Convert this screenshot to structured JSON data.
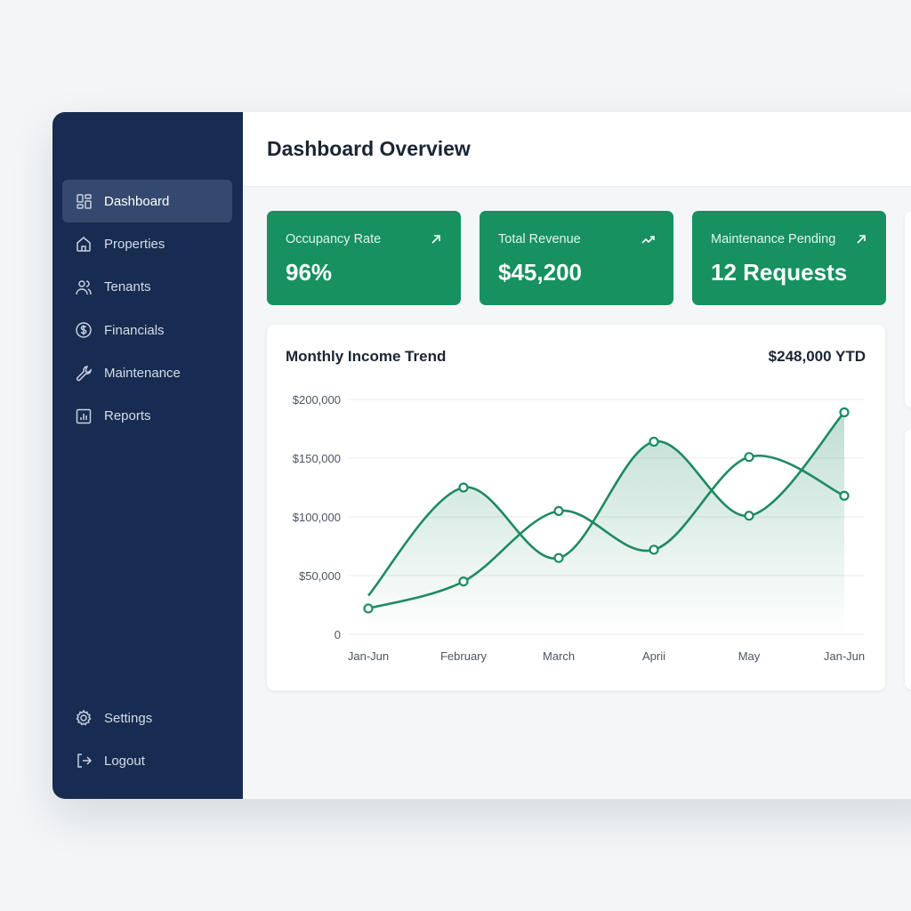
{
  "sidebar": {
    "items": [
      {
        "label": "Dashboard",
        "icon": "dashboard-grid-icon",
        "active": true
      },
      {
        "label": "Properties",
        "icon": "home-icon"
      },
      {
        "label": "Tenants",
        "icon": "users-icon"
      },
      {
        "label": "Financials",
        "icon": "dollar-circle-icon"
      },
      {
        "label": "Maintenance",
        "icon": "wrench-icon"
      },
      {
        "label": "Reports",
        "icon": "bar-chart-icon"
      }
    ],
    "bottom": [
      {
        "label": "Settings",
        "icon": "gear-icon"
      },
      {
        "label": "Logout",
        "icon": "logout-icon"
      }
    ]
  },
  "header": {
    "title": "Dashboard Overview"
  },
  "kpis": [
    {
      "label": "Occupancy Rate",
      "value": "96%",
      "icon": "arrow-up-right-icon"
    },
    {
      "label": "Total Revenue",
      "value": "$45,200",
      "icon": "trend-up-icon"
    },
    {
      "label": "Maintenance Pending",
      "value": "12 Requests",
      "icon": "arrow-up-right-icon"
    }
  ],
  "colors": {
    "accent": "#16915f",
    "sidebar": "#172c50",
    "line": "#1e8a62"
  },
  "chart_data": {
    "type": "line",
    "title": "Monthly Income Trend",
    "annotation": "$248,000 YTD",
    "categories": [
      "Jan-Jun",
      "February",
      "March",
      "Aprii",
      "May",
      "Jan-Jun"
    ],
    "yticks": [
      "0",
      "$50,000",
      "$100,000",
      "$150,000",
      "$200,000"
    ],
    "ylim": [
      0,
      200000
    ],
    "grid": true,
    "series": [
      {
        "values": [
          33000,
          125000,
          65000,
          164000,
          101000,
          189000
        ],
        "filled": true
      },
      {
        "values": [
          22000,
          45000,
          105000,
          72000,
          151000,
          118000
        ]
      }
    ]
  }
}
